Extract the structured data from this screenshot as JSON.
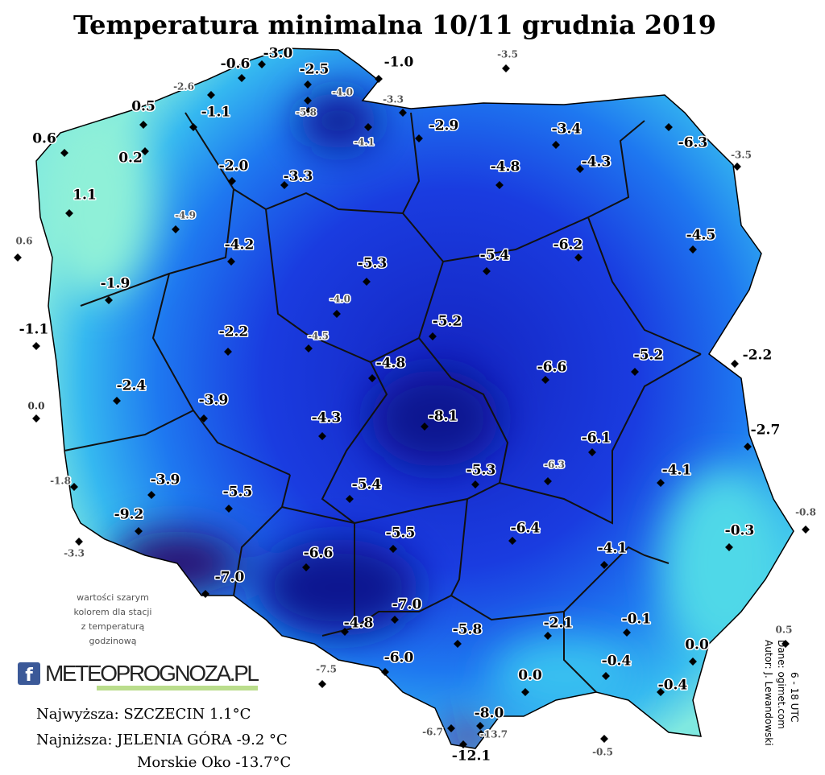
{
  "title": "Temperatura minimalna 10/11 grudnia 2019",
  "stations": [
    {
      "label": "-3.0",
      "color": "#000000"
    },
    {
      "label": "-0.6",
      "color": "#000000"
    },
    {
      "label": "-2.5",
      "color": "#000000"
    },
    {
      "label": "-1.0",
      "color": "#000000"
    },
    {
      "label": "-3.5",
      "color": "#555555"
    },
    {
      "label": "-2.6",
      "color": "#555555"
    },
    {
      "label": "-4.0",
      "color": "#555555"
    },
    {
      "label": "-5.8",
      "color": "#555555"
    },
    {
      "label": "-3.3",
      "color": "#555555"
    },
    {
      "label": "0.5",
      "color": "#000000"
    },
    {
      "label": "-1.1",
      "color": "#000000"
    },
    {
      "label": "-4.1",
      "color": "#555555"
    },
    {
      "label": "-2.9",
      "color": "#000000"
    },
    {
      "label": "-3.4",
      "color": "#000000"
    },
    {
      "label": "-6.3",
      "color": "#000000"
    },
    {
      "label": "0.6",
      "color": "#000000"
    },
    {
      "label": "0.2",
      "color": "#000000"
    },
    {
      "label": "-3.5",
      "color": "#555555"
    },
    {
      "label": "-2.0",
      "color": "#000000"
    },
    {
      "label": "-3.3",
      "color": "#000000"
    },
    {
      "label": "-4.8",
      "color": "#000000"
    },
    {
      "label": "-4.3",
      "color": "#000000"
    },
    {
      "label": "1.1",
      "color": "#000000"
    },
    {
      "label": "-4.9",
      "color": "#555555"
    },
    {
      "label": "-4.5",
      "color": "#000000"
    },
    {
      "label": "0.6",
      "color": "#555555"
    },
    {
      "label": "-4.2",
      "color": "#000000"
    },
    {
      "label": "-5.3",
      "color": "#000000"
    },
    {
      "label": "-5.4",
      "color": "#000000"
    },
    {
      "label": "-6.2",
      "color": "#000000"
    },
    {
      "label": "-1.9",
      "color": "#000000"
    },
    {
      "label": "-4.0",
      "color": "#555555"
    },
    {
      "label": "-1.1",
      "color": "#000000"
    },
    {
      "label": "-5.2",
      "color": "#000000"
    },
    {
      "label": "-2.2",
      "color": "#000000"
    },
    {
      "label": "-4.5",
      "color": "#555555"
    },
    {
      "label": "-2.2",
      "color": "#000000"
    },
    {
      "label": "-4.8",
      "color": "#000000"
    },
    {
      "label": "-6.6",
      "color": "#000000"
    },
    {
      "label": "-5.2",
      "color": "#000000"
    },
    {
      "label": "-2.4",
      "color": "#000000"
    },
    {
      "label": "0.0",
      "color": "#333333"
    },
    {
      "label": "-3.9",
      "color": "#000000"
    },
    {
      "label": "-8.1",
      "color": "#000000"
    },
    {
      "label": "-4.3",
      "color": "#000000"
    },
    {
      "label": "-2.7",
      "color": "#000000"
    },
    {
      "label": "-6.1",
      "color": "#000000"
    },
    {
      "label": "-6.3",
      "color": "#555555"
    },
    {
      "label": "-5.3",
      "color": "#000000"
    },
    {
      "label": "-4.1",
      "color": "#000000"
    },
    {
      "label": "-1.8",
      "color": "#555555"
    },
    {
      "label": "-3.9",
      "color": "#000000"
    },
    {
      "label": "-5.5",
      "color": "#000000"
    },
    {
      "label": "-5.4",
      "color": "#000000"
    },
    {
      "label": "-0.8",
      "color": "#555555"
    },
    {
      "label": "-9.2",
      "color": "#000000"
    },
    {
      "label": "-5.5",
      "color": "#000000"
    },
    {
      "label": "-6.4",
      "color": "#000000"
    },
    {
      "label": "-0.3",
      "color": "#000000"
    },
    {
      "label": "-3.3",
      "color": "#555555"
    },
    {
      "label": "-6.6",
      "color": "#000000"
    },
    {
      "label": "-4.1",
      "color": "#000000"
    },
    {
      "label": "-7.0",
      "color": "#000000"
    },
    {
      "label": "-7.0",
      "color": "#000000"
    },
    {
      "label": "-4.8",
      "color": "#000000"
    },
    {
      "label": "-5.8",
      "color": "#000000"
    },
    {
      "label": "-2.1",
      "color": "#000000"
    },
    {
      "label": "-0.1",
      "color": "#000000"
    },
    {
      "label": "0.5",
      "color": "#555555"
    },
    {
      "label": "0.0",
      "color": "#000000"
    },
    {
      "label": "-7.5",
      "color": "#555555"
    },
    {
      "label": "-6.0",
      "color": "#000000"
    },
    {
      "label": "-0.4",
      "color": "#000000"
    },
    {
      "label": "0.0",
      "color": "#000000"
    },
    {
      "label": "-0.4",
      "color": "#000000"
    },
    {
      "label": "-8.0",
      "color": "#000000"
    },
    {
      "label": "-6.7",
      "color": "#555555"
    },
    {
      "label": "-13.7",
      "color": "#555555"
    },
    {
      "label": "-12.1",
      "color": "#000000"
    },
    {
      "label": "-0.5",
      "color": "#555555"
    }
  ],
  "note": [
    "wartości szarym",
    "kolorem dla stacji",
    "z temperaturą",
    "godzinową"
  ],
  "logo": {
    "icon": "f",
    "text": "METEOPROGNOZA.PL"
  },
  "stats": [
    "Najwyższa: SZCZECIN 1.1°C",
    "Najniższa: JELENIA GÓRA -9.2 °C",
    "Morskie Oko -13.7°C"
  ],
  "credits": [
    "Autor: J. Lewandowski",
    "Dane: ogimet.com",
    "6 - 18 UTC"
  ]
}
